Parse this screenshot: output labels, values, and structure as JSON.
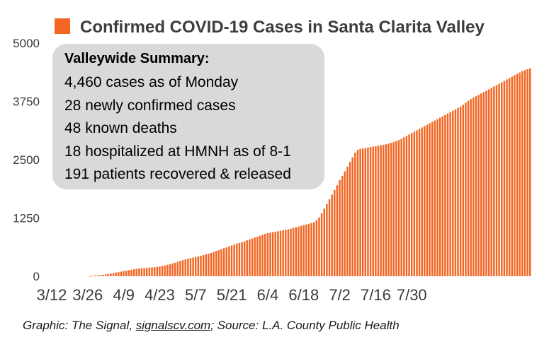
{
  "chart_data": {
    "type": "bar",
    "title": "Confirmed COVID-19 Cases in Santa Clarita Valley",
    "series_name": "Confirmed COVID-19 Cases in Santa Clarita Valley",
    "color": "#f26522",
    "ylim": [
      0,
      5000
    ],
    "yticks": [
      "0",
      "1250",
      "2500",
      "3750",
      "5000"
    ],
    "xticks": [
      "3/12",
      "3/26",
      "4/9",
      "4/23",
      "5/7",
      "5/21",
      "6/4",
      "6/18",
      "7/2",
      "7/16",
      "7/30"
    ],
    "x_start": "3/12",
    "x_end": "8/3",
    "legend": "top",
    "grid": false,
    "values": [
      0,
      0,
      0,
      0,
      0,
      0,
      0,
      0,
      0,
      0,
      0,
      0,
      5,
      10,
      15,
      20,
      25,
      30,
      40,
      50,
      60,
      70,
      80,
      90,
      100,
      110,
      120,
      130,
      140,
      150,
      160,
      165,
      170,
      175,
      180,
      185,
      190,
      195,
      200,
      210,
      220,
      230,
      245,
      260,
      275,
      290,
      310,
      330,
      345,
      360,
      375,
      390,
      400,
      410,
      425,
      440,
      455,
      470,
      485,
      500,
      520,
      540,
      560,
      580,
      600,
      620,
      640,
      660,
      680,
      700,
      715,
      730,
      750,
      770,
      790,
      810,
      830,
      850,
      870,
      890,
      910,
      925,
      935,
      945,
      955,
      965,
      975,
      985,
      995,
      1005,
      1020,
      1035,
      1050,
      1065,
      1080,
      1095,
      1110,
      1125,
      1140,
      1160,
      1200,
      1260,
      1350,
      1450,
      1550,
      1650,
      1750,
      1850,
      1950,
      2060,
      2150,
      2250,
      2350,
      2450,
      2550,
      2650,
      2710,
      2730,
      2740,
      2750,
      2760,
      2770,
      2780,
      2790,
      2800,
      2810,
      2820,
      2830,
      2845,
      2860,
      2880,
      2900,
      2920,
      2950,
      2980,
      3010,
      3040,
      3070,
      3100,
      3130,
      3160,
      3190,
      3220,
      3250,
      3280,
      3310,
      3340,
      3370,
      3400,
      3430,
      3460,
      3490,
      3520,
      3550,
      3580,
      3610,
      3640,
      3680,
      3720,
      3760,
      3800,
      3830,
      3860,
      3890,
      3920,
      3950,
      3980,
      4010,
      4040,
      4070,
      4100,
      4130,
      4160,
      4190,
      4220,
      4250,
      4280,
      4310,
      4340,
      4370,
      4400,
      4420,
      4440,
      4460
    ]
  },
  "summary": {
    "title": "Valleywide Summary:",
    "lines": [
      "4,460 cases as of Monday",
      "28 newly confirmed cases",
      "48 known deaths",
      "18 hospitalized at HMNH as of 8-1",
      "191 patients recovered & released"
    ]
  },
  "footer": {
    "prefix": "Graphic: The Signal, ",
    "link": "signalscv.com",
    "suffix": "; Source: L.A. County Public Health"
  }
}
